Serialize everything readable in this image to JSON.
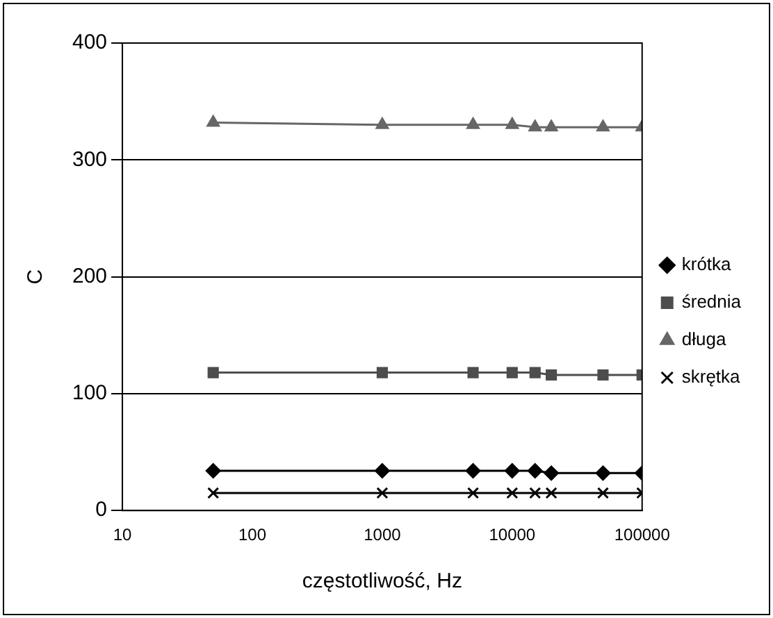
{
  "chart_data": {
    "type": "line",
    "xlabel": "częstotliwość, Hz",
    "ylabel": "C",
    "log": "x",
    "x": [
      50,
      1000,
      5000,
      10000,
      15000,
      20000,
      50000,
      100000
    ],
    "xlim": [
      10,
      100000
    ],
    "xticks": [
      10,
      100,
      1000,
      10000,
      100000
    ],
    "ylim": [
      0,
      400
    ],
    "yticks": [
      0,
      100,
      200,
      300,
      400
    ],
    "grid": "y",
    "legend": "right",
    "series": [
      {
        "name": "krótka",
        "color": "#000000",
        "marker": "diamond",
        "values": [
          34,
          34,
          34,
          34,
          34,
          32,
          32,
          32
        ]
      },
      {
        "name": "średnia",
        "color": "#4d4d4d",
        "marker": "square",
        "values": [
          118,
          118,
          118,
          118,
          118,
          116,
          116,
          116
        ]
      },
      {
        "name": "długa",
        "color": "#666666",
        "marker": "triangle",
        "values": [
          332,
          330,
          330,
          330,
          328,
          328,
          328,
          328
        ]
      },
      {
        "name": "skrętka",
        "color": "#000000",
        "marker": "cross",
        "values": [
          15,
          15,
          15,
          15,
          15,
          15,
          15,
          15
        ]
      }
    ]
  }
}
